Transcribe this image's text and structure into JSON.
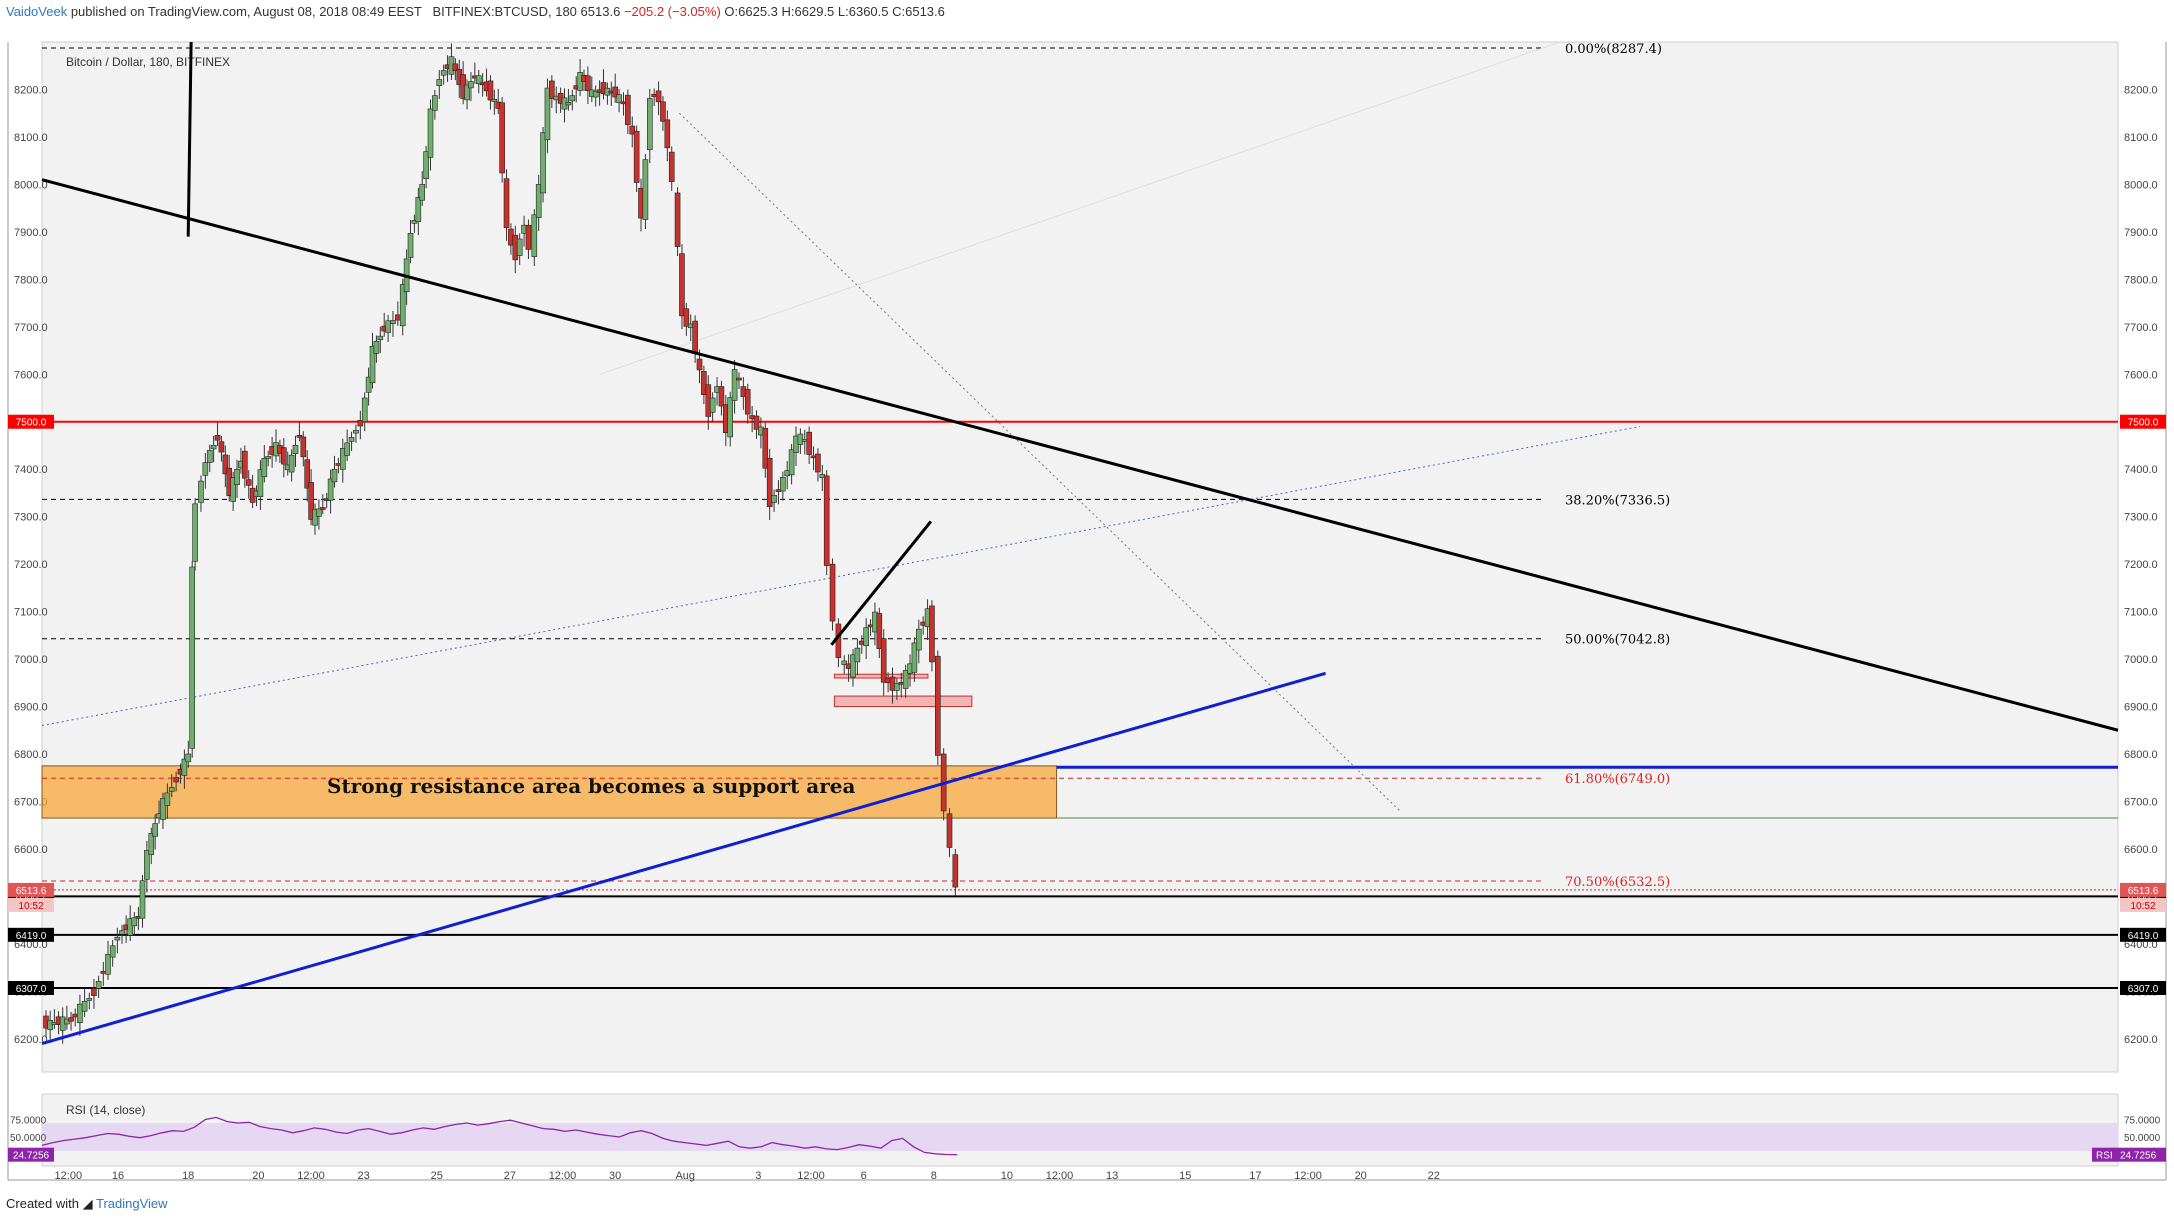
{
  "header": {
    "author": "VaidoVeek",
    "published": "published on TradingView.com, August 08, 2018 08:49 EEST",
    "symbol": "BITFINEX:BTCUSD, 180",
    "last": "6513.6",
    "change": "−205.2 (−3.05%)",
    "ohlc": "O:6625.3 H:6629.5 L:6360.5 C:6513.6"
  },
  "footer": {
    "created_with": "Created with",
    "brand": "TradingView"
  },
  "colors": {
    "up": "#4a8a4a",
    "down": "#c8312c",
    "red_line": "#ff0000",
    "blue_line": "#1020d0",
    "zone": "#f7a739",
    "rsi_band": "#e6d8f2",
    "rsi_line": "#8e24aa"
  },
  "chart_data": {
    "type": "candlestick",
    "title": "Bitcoin / Dollar, 180, BITFINEX",
    "ylim": [
      6130,
      8300
    ],
    "y_ticks": [
      6200,
      6300,
      6400,
      6500,
      6600,
      6700,
      6800,
      6900,
      7000,
      7100,
      7200,
      7300,
      7400,
      7500,
      7600,
      7700,
      7800,
      7900,
      8000,
      8100,
      8200
    ],
    "y_tick_labels": [
      "6200.0",
      "6300.0",
      "6400.0",
      "6500.0",
      "6600.0",
      "6700.0",
      "6800.0",
      "6900.0",
      "7000.0",
      "7100.0",
      "7200.0",
      "7300.0",
      "7400.0",
      "7500.0",
      "7600.0",
      "7700.0",
      "7800.0",
      "7900.0",
      "8000.0",
      "8100.0",
      "8200.0"
    ],
    "x_range": [
      0,
      71
    ],
    "x_labels": [
      {
        "x": 0.9,
        "label": "12:00"
      },
      {
        "x": 2.6,
        "label": "16"
      },
      {
        "x": 5.0,
        "label": "18"
      },
      {
        "x": 7.4,
        "label": "20"
      },
      {
        "x": 9.2,
        "label": "12:00"
      },
      {
        "x": 11.0,
        "label": "23"
      },
      {
        "x": 13.5,
        "label": "25"
      },
      {
        "x": 16.0,
        "label": "27"
      },
      {
        "x": 17.8,
        "label": "12:00"
      },
      {
        "x": 19.6,
        "label": "30"
      },
      {
        "x": 22.0,
        "label": "Aug"
      },
      {
        "x": 24.5,
        "label": "3"
      },
      {
        "x": 26.3,
        "label": "12:00"
      },
      {
        "x": 28.1,
        "label": "6"
      },
      {
        "x": 30.5,
        "label": "8"
      },
      {
        "x": 33.0,
        "label": "10"
      },
      {
        "x": 34.8,
        "label": "12:00"
      },
      {
        "x": 36.6,
        "label": "13"
      },
      {
        "x": 39.1,
        "label": "15"
      },
      {
        "x": 41.5,
        "label": "17"
      },
      {
        "x": 43.3,
        "label": "12:00"
      },
      {
        "x": 45.1,
        "label": "20"
      },
      {
        "x": 47.6,
        "label": "22"
      }
    ],
    "price_path": [
      [
        0,
        6230
      ],
      [
        1,
        6240
      ],
      [
        1.8,
        6300
      ],
      [
        2.6,
        6420
      ],
      [
        3.3,
        6460
      ],
      [
        3.6,
        6600
      ],
      [
        4.0,
        6680
      ],
      [
        4.6,
        6750
      ],
      [
        5.0,
        6800
      ],
      [
        5.1,
        7200
      ],
      [
        5.3,
        7330
      ],
      [
        5.6,
        7420
      ],
      [
        6.0,
        7470
      ],
      [
        6.4,
        7350
      ],
      [
        6.8,
        7420
      ],
      [
        7.2,
        7330
      ],
      [
        7.6,
        7420
      ],
      [
        8.0,
        7450
      ],
      [
        8.4,
        7400
      ],
      [
        8.8,
        7480
      ],
      [
        9.2,
        7300
      ],
      [
        9.6,
        7320
      ],
      [
        10.0,
        7400
      ],
      [
        10.6,
        7470
      ],
      [
        10.9,
        7500
      ],
      [
        11.3,
        7650
      ],
      [
        11.7,
        7700
      ],
      [
        12.2,
        7720
      ],
      [
        12.6,
        7900
      ],
      [
        13.0,
        8000
      ],
      [
        13.3,
        8150
      ],
      [
        13.6,
        8230
      ],
      [
        14.0,
        8260
      ],
      [
        14.4,
        8190
      ],
      [
        14.8,
        8230
      ],
      [
        15.2,
        8200
      ],
      [
        15.6,
        8160
      ],
      [
        15.9,
        7900
      ],
      [
        16.2,
        7850
      ],
      [
        16.5,
        7920
      ],
      [
        16.7,
        7860
      ],
      [
        17.0,
        8000
      ],
      [
        17.3,
        8200
      ],
      [
        17.6,
        8180
      ],
      [
        18.0,
        8170
      ],
      [
        18.4,
        8230
      ],
      [
        18.8,
        8190
      ],
      [
        19.2,
        8200
      ],
      [
        19.6,
        8190
      ],
      [
        19.9,
        8170
      ],
      [
        20.2,
        8100
      ],
      [
        20.5,
        7920
      ],
      [
        20.8,
        8190
      ],
      [
        21.1,
        8180
      ],
      [
        21.4,
        8080
      ],
      [
        21.6,
        8000
      ],
      [
        21.9,
        7720
      ],
      [
        22.2,
        7700
      ],
      [
        22.5,
        7600
      ],
      [
        22.8,
        7520
      ],
      [
        23.1,
        7580
      ],
      [
        23.4,
        7480
      ],
      [
        23.7,
        7610
      ],
      [
        24.0,
        7550
      ],
      [
        24.3,
        7500
      ],
      [
        24.6,
        7480
      ],
      [
        24.9,
        7330
      ],
      [
        25.2,
        7360
      ],
      [
        25.5,
        7400
      ],
      [
        25.8,
        7470
      ],
      [
        26.1,
        7460
      ],
      [
        26.4,
        7420
      ],
      [
        26.7,
        7380
      ],
      [
        26.9,
        7200
      ],
      [
        27.1,
        7080
      ],
      [
        27.3,
        7000
      ],
      [
        27.6,
        6980
      ],
      [
        27.9,
        7020
      ],
      [
        28.2,
        7060
      ],
      [
        28.5,
        7090
      ],
      [
        28.8,
        6960
      ],
      [
        29.1,
        6940
      ],
      [
        29.4,
        6950
      ],
      [
        29.7,
        6990
      ],
      [
        30.0,
        7060
      ],
      [
        30.3,
        7100
      ],
      [
        30.5,
        7000
      ],
      [
        30.7,
        6800
      ],
      [
        30.9,
        6680
      ],
      [
        31.1,
        6600
      ],
      [
        31.3,
        6513.6
      ]
    ],
    "horizontal_levels": [
      {
        "value": 7500.0,
        "label": "7500.0",
        "color": "#ff0000",
        "style": "solid"
      },
      {
        "value": 6500.1,
        "label": "6500.1",
        "color": "#000000",
        "style": "solid"
      },
      {
        "value": 6419.0,
        "label": "6419.0",
        "color": "#000000",
        "style": "solid"
      },
      {
        "value": 6307.0,
        "label": "6307.0",
        "color": "#000000",
        "style": "solid"
      },
      {
        "value": 6772,
        "label": "",
        "color": "#1020d0",
        "style": "solid"
      }
    ],
    "last_price": {
      "value": 6513.6,
      "label": "6513.6",
      "countdown": "10:52"
    },
    "fibonacci": [
      {
        "value": 8287.4,
        "label": "0.00%(8287.4)"
      },
      {
        "value": 7336.5,
        "label": "38.20%(7336.5)"
      },
      {
        "value": 7042.8,
        "label": "50.00%(7042.8)"
      },
      {
        "value": 6749.0,
        "label": "61.80%(6749.0)"
      },
      {
        "value": 6532.5,
        "label": "70.50%(6532.5)"
      }
    ],
    "support_zone": {
      "low": 6665,
      "high": 6775,
      "x_start": 0,
      "x_end": 34.7,
      "label": "Strong resistance area becomes a support area"
    },
    "small_zones": [
      {
        "low": 6960,
        "high": 6968,
        "x_start": 27.1,
        "x_end": 30.3
      },
      {
        "low": 6900,
        "high": 6922,
        "x_start": 27.1,
        "x_end": 31.8
      }
    ],
    "trendlines": [
      {
        "name": "descending-trendline",
        "x1": 0,
        "y1": 8010,
        "x2": 71,
        "y2": 6850,
        "color": "#000000"
      },
      {
        "name": "ascending-trendline",
        "x1": 0,
        "y1": 6190,
        "x2": 43.9,
        "y2": 6970,
        "color": "#1020d0"
      },
      {
        "name": "short-black-line-top",
        "x1": 5.0,
        "y1": 7890,
        "x2": 5.1,
        "y2": 8300,
        "color": "#000000"
      },
      {
        "name": "rising-wedge-line",
        "x1": 27.0,
        "y1": 7030,
        "x2": 30.4,
        "y2": 7290,
        "color": "#000000"
      }
    ],
    "rsi": {
      "label": "RSI (14, close)",
      "ylim": [
        20,
        100
      ],
      "band": [
        30,
        70
      ],
      "tick_labels": [
        "75.0000",
        "50.0000"
      ],
      "last_label": "RSI",
      "last_value": "24.7256",
      "values": [
        38,
        42,
        45,
        47,
        49,
        52,
        55,
        54,
        51,
        49,
        52,
        56,
        59,
        58,
        64,
        75,
        78,
        72,
        70,
        71,
        65,
        62,
        60,
        56,
        59,
        63,
        61,
        57,
        55,
        60,
        62,
        58,
        54,
        56,
        60,
        63,
        61,
        65,
        68,
        70,
        67,
        69,
        72,
        74,
        70,
        66,
        62,
        61,
        58,
        60,
        57,
        54,
        52,
        50,
        56,
        59,
        55,
        48,
        44,
        42,
        40,
        38,
        41,
        44,
        36,
        34,
        36,
        42,
        39,
        37,
        34,
        36,
        33,
        32,
        35,
        39,
        37,
        34,
        45,
        48,
        36,
        28,
        26,
        25,
        24.7
      ]
    }
  }
}
